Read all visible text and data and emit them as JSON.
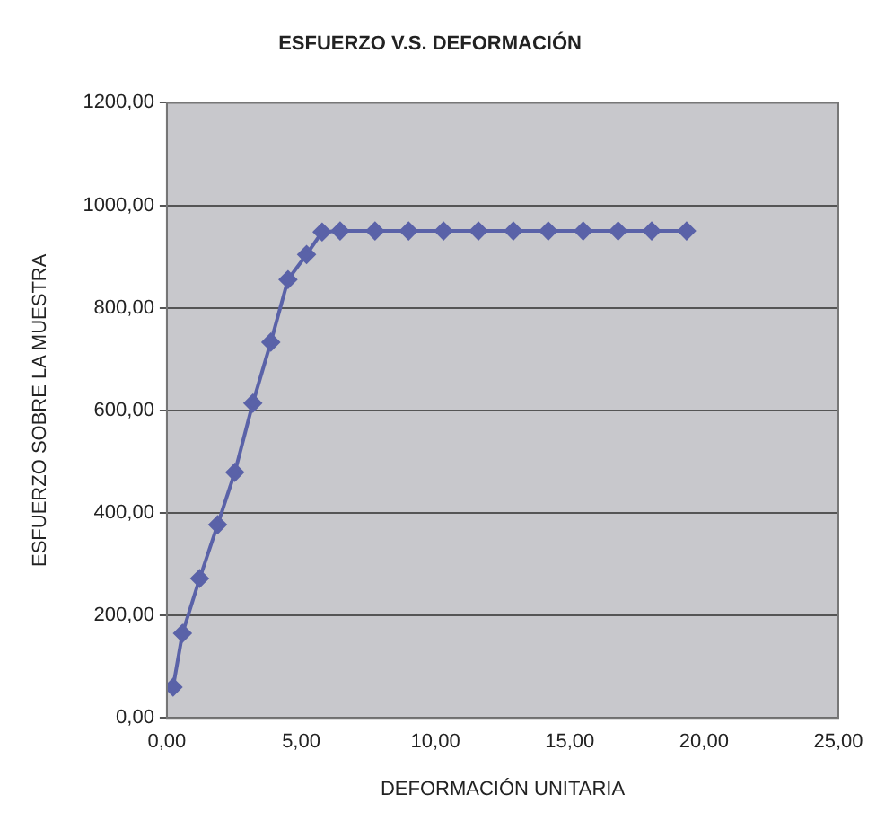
{
  "chart_data": {
    "type": "line",
    "title": "ESFUERZO V.S. DEFORMACIÓN",
    "xlabel": "DEFORMACIÓN UNITARIA",
    "ylabel": "ESFUERZO SOBRE LA MUESTRA",
    "x": [
      0.23,
      0.58,
      1.22,
      1.89,
      2.53,
      3.2,
      3.87,
      4.51,
      5.2,
      5.78,
      6.45,
      7.75,
      9.0,
      10.3,
      11.6,
      12.9,
      14.2,
      15.5,
      16.8,
      18.05,
      19.35
    ],
    "series": [
      {
        "color": "#5a62a8",
        "values": [
          60,
          165,
          272,
          377,
          479,
          614,
          733,
          855,
          904,
          948,
          950,
          950,
          950,
          950,
          950,
          950,
          950,
          950,
          950,
          950,
          950
        ]
      }
    ],
    "xlim": [
      0,
      25
    ],
    "xticks": [
      {
        "value": 0,
        "label": "0,00"
      },
      {
        "value": 5,
        "label": "5,00"
      },
      {
        "value": 10,
        "label": "10,00"
      },
      {
        "value": 15,
        "label": "15,00"
      },
      {
        "value": 20,
        "label": "20,00"
      },
      {
        "value": 25,
        "label": "25,00"
      }
    ],
    "ylim": [
      0,
      1200
    ],
    "yticks": [
      {
        "value": 0,
        "label": "0,00"
      },
      {
        "value": 200,
        "label": "200,00"
      },
      {
        "value": 400,
        "label": "400,00"
      },
      {
        "value": 600,
        "label": "600,00"
      },
      {
        "value": 800,
        "label": "800,00"
      },
      {
        "value": 1000,
        "label": "1000,00"
      },
      {
        "value": 1200,
        "label": "1200,00"
      }
    ],
    "grid": "y",
    "legend": false,
    "marker": "diamond",
    "line_style": "solid"
  }
}
